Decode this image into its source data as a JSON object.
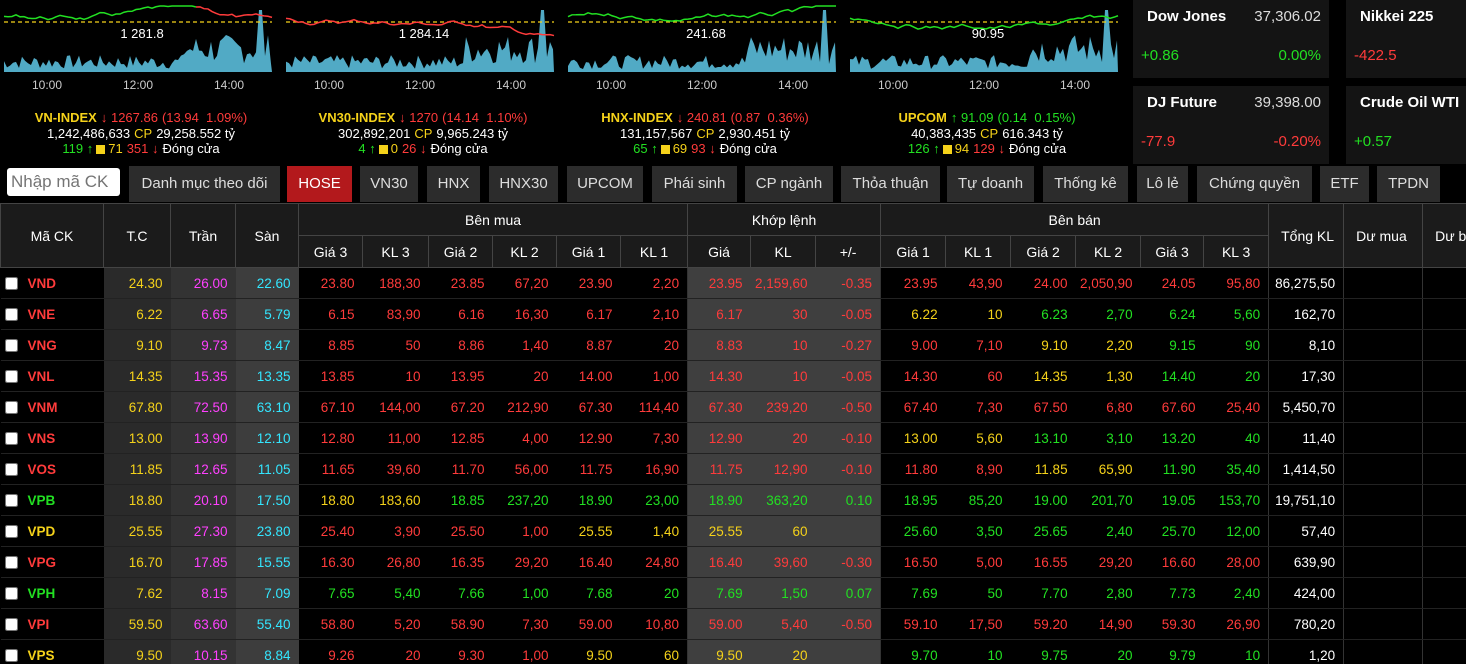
{
  "indices": [
    {
      "name": "VN-INDEX",
      "value": "↓ 1267.86",
      "change": "(13.94  1.09%)",
      "color": "#ff3b3b",
      "chart_label": "1 281.8",
      "volume": "1,242,486,633",
      "cp": "CP",
      "amount": "29,258.552 tỷ",
      "up": "119 ↑",
      "ref": "71",
      "down": "351 ↓",
      "status": "Đóng cửa",
      "times": [
        "10:00",
        "12:00",
        "14:00"
      ]
    },
    {
      "name": "VN30-INDEX",
      "value": "↓ 1270",
      "change": "(14.14  1.10%)",
      "color": "#ff3b3b",
      "chart_label": "1 284.14",
      "volume": "302,892,201",
      "cp": "CP",
      "amount": "9,965.243 tỷ",
      "up": "4 ↑",
      "ref": "0",
      "down": "26 ↓",
      "status": "Đóng cửa",
      "times": [
        "10:00",
        "12:00",
        "14:00"
      ]
    },
    {
      "name": "HNX-INDEX",
      "value": "↓ 240.81",
      "change": "(0.87  0.36%)",
      "color": "#ff3b3b",
      "chart_label": "241.68",
      "volume": "131,157,567",
      "cp": "CP",
      "amount": "2,930.451 tỷ",
      "up": "65 ↑",
      "ref": "69",
      "down": "93 ↓",
      "status": "Đóng cửa",
      "times": [
        "10:00",
        "12:00",
        "14:00"
      ]
    },
    {
      "name": "UPCOM",
      "value": "↑ 91.09",
      "change": "(0.14  0.15%)",
      "color": "#22e022",
      "chart_label": "90.95",
      "volume": "40,383,435",
      "cp": "CP",
      "amount": "616.343 tỷ",
      "up": "126 ↑",
      "ref": "94",
      "down": "129 ↓",
      "status": "Đóng cửa",
      "times": [
        "10:00",
        "12:00",
        "14:00"
      ]
    }
  ],
  "world": [
    {
      "name": "Dow Jones",
      "value": "37,306.02",
      "change": "+0.86",
      "percent": "0.00%",
      "color": "#22e022"
    },
    {
      "name": "Nikkei 225",
      "change": "-422.5",
      "color": "#ff3b3b"
    },
    {
      "name": "DJ Future",
      "value": "39,398.00",
      "change": "-77.9",
      "percent": "-0.20%",
      "color": "#ff3b3b"
    },
    {
      "name": "Crude Oil WTI",
      "change": "+0.57",
      "color": "#22e022"
    }
  ],
  "search_placeholder": "Nhập mã CK",
  "tabs": [
    "Danh mục theo dõi",
    "HOSE",
    "VN30",
    "HNX",
    "HNX30",
    "UPCOM",
    "Phái sinh",
    "CP ngành",
    "Thỏa thuận",
    "Tự doanh",
    "Thống kê",
    "Lô lẻ",
    "Chứng quyền",
    "ETF",
    "TPDN"
  ],
  "active_tab": "HOSE",
  "table": {
    "headers_main": [
      "Mã CK",
      "T.C",
      "Trần",
      "Sàn"
    ],
    "groups": [
      "Bên mua",
      "Khớp lệnh",
      "Bên bán"
    ],
    "buy_cols": [
      "Giá 3",
      "KL 3",
      "Giá 2",
      "KL 2",
      "Giá 1",
      "KL 1"
    ],
    "match_cols": [
      "Giá",
      "KL",
      "+/-"
    ],
    "sell_cols": [
      "Giá 1",
      "KL 1",
      "Giá 2",
      "KL 2",
      "Giá 3",
      "KL 3"
    ],
    "tail": [
      "Tổng KL",
      "Dư mua",
      "Dư bán"
    ],
    "rows": [
      [
        "VND",
        "24.30",
        "26.00",
        "22.60",
        "23.80",
        "188,30",
        "23.85",
        "67,20",
        "23.90",
        "2,20",
        "23.95",
        "2,159,60",
        "-0.35",
        "23.95",
        "43,90",
        "24.00",
        "2,050,90",
        "24.05",
        "95,80",
        "86,275,50"
      ],
      [
        "VNE",
        "6.22",
        "6.65",
        "5.79",
        "6.15",
        "83,90",
        "6.16",
        "16,30",
        "6.17",
        "2,10",
        "6.17",
        "30",
        "-0.05",
        "6.22",
        "10",
        "6.23",
        "2,70",
        "6.24",
        "5,60",
        "162,70"
      ],
      [
        "VNG",
        "9.10",
        "9.73",
        "8.47",
        "8.85",
        "50",
        "8.86",
        "1,40",
        "8.87",
        "20",
        "8.83",
        "10",
        "-0.27",
        "9.00",
        "7,10",
        "9.10",
        "2,20",
        "9.15",
        "90",
        "8,10"
      ],
      [
        "VNL",
        "14.35",
        "15.35",
        "13.35",
        "13.85",
        "10",
        "13.95",
        "20",
        "14.00",
        "1,00",
        "14.30",
        "10",
        "-0.05",
        "14.30",
        "60",
        "14.35",
        "1,30",
        "14.40",
        "20",
        "17,30"
      ],
      [
        "VNM",
        "67.80",
        "72.50",
        "63.10",
        "67.10",
        "144,00",
        "67.20",
        "212,90",
        "67.30",
        "114,40",
        "67.30",
        "239,20",
        "-0.50",
        "67.40",
        "7,30",
        "67.50",
        "6,80",
        "67.60",
        "25,40",
        "5,450,70"
      ],
      [
        "VNS",
        "13.00",
        "13.90",
        "12.10",
        "12.80",
        "11,00",
        "12.85",
        "4,00",
        "12.90",
        "7,30",
        "12.90",
        "20",
        "-0.10",
        "13.00",
        "5,60",
        "13.10",
        "3,10",
        "13.20",
        "40",
        "11,40"
      ],
      [
        "VOS",
        "11.85",
        "12.65",
        "11.05",
        "11.65",
        "39,60",
        "11.70",
        "56,00",
        "11.75",
        "16,90",
        "11.75",
        "12,90",
        "-0.10",
        "11.80",
        "8,90",
        "11.85",
        "65,90",
        "11.90",
        "35,40",
        "1,414,50"
      ],
      [
        "VPB",
        "18.80",
        "20.10",
        "17.50",
        "18.80",
        "183,60",
        "18.85",
        "237,20",
        "18.90",
        "23,00",
        "18.90",
        "363,20",
        "0.10",
        "18.95",
        "85,20",
        "19.00",
        "201,70",
        "19.05",
        "153,70",
        "19,751,10"
      ],
      [
        "VPD",
        "25.55",
        "27.30",
        "23.80",
        "25.40",
        "3,90",
        "25.50",
        "1,00",
        "25.55",
        "1,40",
        "25.55",
        "60",
        null,
        "25.60",
        "3,50",
        "25.65",
        "2,40",
        "25.70",
        "12,00",
        "57,40"
      ],
      [
        "VPG",
        "16.70",
        "17.85",
        "15.55",
        "16.30",
        "26,80",
        "16.35",
        "29,20",
        "16.40",
        "24,80",
        "16.40",
        "39,60",
        "-0.30",
        "16.50",
        "5,00",
        "16.55",
        "29,20",
        "16.60",
        "28,00",
        "639,90"
      ],
      [
        "VPH",
        "7.62",
        "8.15",
        "7.09",
        "7.65",
        "5,40",
        "7.66",
        "1,00",
        "7.68",
        "20",
        "7.69",
        "1,50",
        "0.07",
        "7.69",
        "50",
        "7.70",
        "2,80",
        "7.73",
        "2,40",
        "424,00"
      ],
      [
        "VPI",
        "59.50",
        "63.60",
        "55.40",
        "58.80",
        "5,20",
        "58.90",
        "7,30",
        "59.00",
        "10,80",
        "59.00",
        "5,40",
        "-0.50",
        "59.10",
        "17,50",
        "59.20",
        "14,90",
        "59.30",
        "26,90",
        "780,20"
      ],
      [
        "VPS",
        "9.50",
        "10.15",
        "8.84",
        "9.26",
        "20",
        "9.30",
        "1,00",
        "9.50",
        "60",
        "9.50",
        "20",
        null,
        "9.70",
        "10",
        "9.75",
        "20",
        "9.79",
        "10",
        "1,20"
      ]
    ]
  }
}
